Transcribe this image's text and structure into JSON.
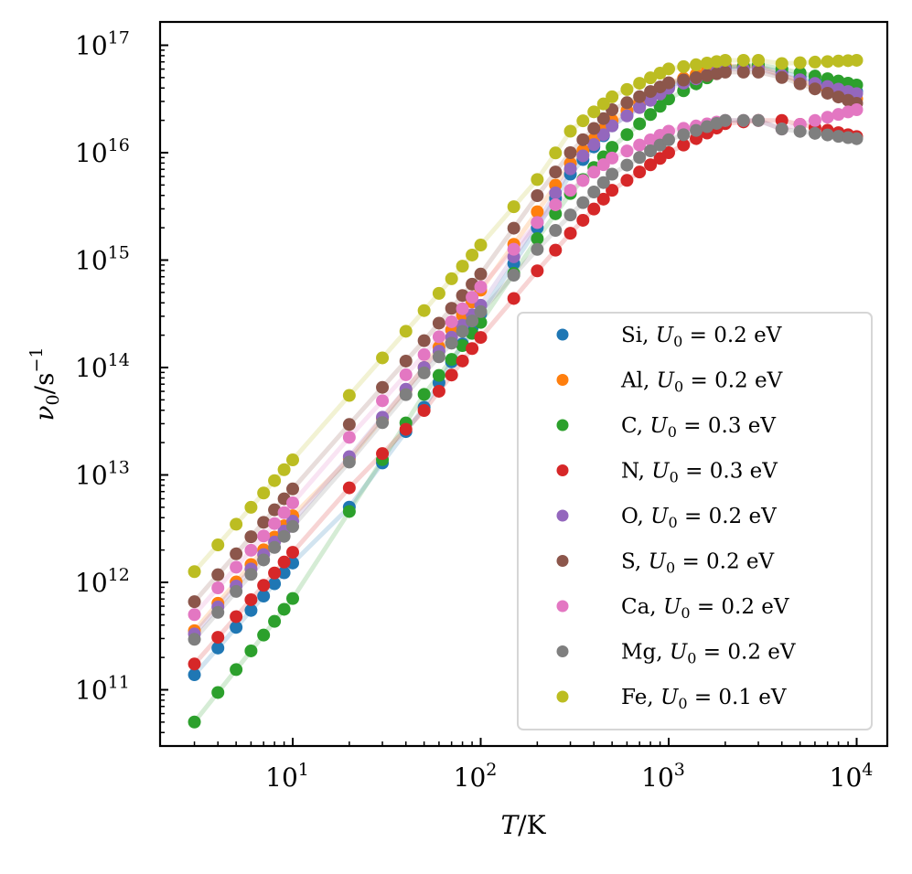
{
  "chart_data": {
    "type": "scatter",
    "title": "",
    "xlabel": "T/K",
    "ylabel": "ν0/s^-1",
    "xscale": "log",
    "yscale": "log",
    "xlim": [
      2.2,
      14500
    ],
    "ylim": [
      25000000000.0,
      1.6e+17
    ],
    "x_ticks": [
      {
        "value": 10,
        "base": "10",
        "exp": "1"
      },
      {
        "value": 100,
        "base": "10",
        "exp": "2"
      },
      {
        "value": 1000,
        "base": "10",
        "exp": "3"
      },
      {
        "value": 10000,
        "base": "10",
        "exp": "4"
      }
    ],
    "y_ticks": [
      {
        "value": 100000000000.0,
        "base": "10",
        "exp": "11"
      },
      {
        "value": 1000000000000.0,
        "base": "10",
        "exp": "12"
      },
      {
        "value": 10000000000000.0,
        "base": "10",
        "exp": "13"
      },
      {
        "value": 100000000000000.0,
        "base": "10",
        "exp": "14"
      },
      {
        "value": 1000000000000000.0,
        "base": "10",
        "exp": "15"
      },
      {
        "value": 1e+16,
        "base": "10",
        "exp": "16"
      },
      {
        "value": 1e+17,
        "base": "10",
        "exp": "17"
      }
    ],
    "legend_position": "lower-right",
    "x": [
      3,
      4,
      5,
      6,
      7,
      8,
      9,
      10,
      20,
      30,
      40,
      50,
      60,
      70,
      80,
      90,
      100,
      150,
      200,
      250,
      300,
      350,
      400,
      450,
      500,
      600,
      700,
      800,
      900,
      1000,
      1200,
      1400,
      1600,
      1800,
      2000,
      2500,
      3000,
      4000,
      5000,
      6000,
      7000,
      8000,
      9000,
      10000
    ],
    "series": [
      {
        "name": "Si",
        "label": "Si, U0 = 0.2 eV",
        "color": "#1f77b4",
        "log10_anchors": [
          [
            3,
            11.14
          ],
          [
            10,
            12.18
          ],
          [
            20,
            12.7
          ],
          [
            50,
            13.63
          ],
          [
            100,
            14.5
          ],
          [
            200,
            15.3
          ],
          [
            300,
            15.8
          ],
          [
            500,
            16.25
          ],
          [
            1000,
            16.62
          ],
          [
            2000,
            16.8
          ],
          [
            3000,
            16.8
          ],
          [
            4000,
            16.75
          ],
          [
            10000,
            16.57
          ]
        ]
      },
      {
        "name": "Al",
        "label": "Al, U0 = 0.2 eV",
        "color": "#ff7f0e",
        "log10_anchors": [
          [
            3,
            11.55
          ],
          [
            10,
            12.62
          ],
          [
            20,
            13.15
          ],
          [
            50,
            14.0
          ],
          [
            100,
            14.72
          ],
          [
            200,
            15.45
          ],
          [
            300,
            15.9
          ],
          [
            500,
            16.3
          ],
          [
            1000,
            16.65
          ],
          [
            2000,
            16.81
          ],
          [
            3000,
            16.8
          ],
          [
            4000,
            16.72
          ],
          [
            10000,
            16.5
          ]
        ]
      },
      {
        "name": "C",
        "label": "C, U0 = 0.3 eV",
        "color": "#2ca02c",
        "log10_anchors": [
          [
            3,
            10.7
          ],
          [
            10,
            11.85
          ],
          [
            20,
            12.66
          ],
          [
            50,
            13.75
          ],
          [
            100,
            14.42
          ],
          [
            200,
            15.2
          ],
          [
            300,
            15.62
          ],
          [
            500,
            16.05
          ],
          [
            1000,
            16.5
          ],
          [
            2000,
            16.79
          ],
          [
            3000,
            16.82
          ],
          [
            4000,
            16.78
          ],
          [
            10000,
            16.63
          ]
        ]
      },
      {
        "name": "N",
        "label": "N, U0 = 0.3 eV",
        "color": "#d62728",
        "log10_anchors": [
          [
            3,
            11.24
          ],
          [
            10,
            12.28
          ],
          [
            20,
            12.88
          ],
          [
            50,
            13.6
          ],
          [
            100,
            14.28
          ],
          [
            200,
            14.9
          ],
          [
            300,
            15.25
          ],
          [
            500,
            15.65
          ],
          [
            1000,
            16.0
          ],
          [
            2000,
            16.27
          ],
          [
            3000,
            16.3
          ],
          [
            4000,
            16.3
          ],
          [
            10000,
            16.15
          ]
        ]
      },
      {
        "name": "O",
        "label": "O, U0 = 0.2 eV",
        "color": "#9467bd",
        "log10_anchors": [
          [
            3,
            11.52
          ],
          [
            10,
            12.57
          ],
          [
            20,
            13.17
          ],
          [
            50,
            14.0
          ],
          [
            100,
            14.58
          ],
          [
            200,
            15.35
          ],
          [
            300,
            15.85
          ],
          [
            500,
            16.25
          ],
          [
            1000,
            16.6
          ],
          [
            2000,
            16.78
          ],
          [
            3000,
            16.78
          ],
          [
            4000,
            16.72
          ],
          [
            10000,
            16.55
          ]
        ]
      },
      {
        "name": "S",
        "label": "S, U0 = 0.2 eV",
        "color": "#8c564b",
        "log10_anchors": [
          [
            3,
            11.82
          ],
          [
            10,
            12.87
          ],
          [
            20,
            13.47
          ],
          [
            50,
            14.25
          ],
          [
            100,
            14.87
          ],
          [
            200,
            15.6
          ],
          [
            300,
            16.0
          ],
          [
            500,
            16.4
          ],
          [
            1000,
            16.65
          ],
          [
            2000,
            16.75
          ],
          [
            3000,
            16.75
          ],
          [
            4000,
            16.7
          ],
          [
            10000,
            16.46
          ]
        ]
      },
      {
        "name": "Ca",
        "label": "Ca, U0 = 0.2 eV",
        "color": "#e377c2",
        "log10_anchors": [
          [
            3,
            11.7
          ],
          [
            10,
            12.74
          ],
          [
            20,
            13.35
          ],
          [
            50,
            14.12
          ],
          [
            100,
            14.75
          ],
          [
            200,
            15.35
          ],
          [
            300,
            15.65
          ],
          [
            500,
            15.95
          ],
          [
            1000,
            16.2
          ],
          [
            2000,
            16.3
          ],
          [
            3000,
            16.3
          ],
          [
            4000,
            16.22
          ],
          [
            10000,
            16.4
          ]
        ]
      },
      {
        "name": "Mg",
        "label": "Mg, U0 = 0.2 eV",
        "color": "#7f7f7f",
        "log10_anchors": [
          [
            3,
            11.47
          ],
          [
            10,
            12.52
          ],
          [
            20,
            13.12
          ],
          [
            50,
            13.95
          ],
          [
            100,
            14.52
          ],
          [
            200,
            15.1
          ],
          [
            300,
            15.42
          ],
          [
            500,
            15.8
          ],
          [
            1000,
            16.12
          ],
          [
            2000,
            16.3
          ],
          [
            3000,
            16.3
          ],
          [
            4000,
            16.22
          ],
          [
            10000,
            16.13
          ]
        ]
      },
      {
        "name": "Fe",
        "label": "Fe, U0 = 0.1 eV",
        "color": "#bcbd22",
        "log10_anchors": [
          [
            3,
            12.1
          ],
          [
            10,
            13.14
          ],
          [
            20,
            13.74
          ],
          [
            50,
            14.53
          ],
          [
            100,
            15.14
          ],
          [
            200,
            15.75
          ],
          [
            300,
            16.2
          ],
          [
            500,
            16.52
          ],
          [
            1000,
            16.78
          ],
          [
            2000,
            16.86
          ],
          [
            3000,
            16.86
          ],
          [
            4000,
            16.83
          ],
          [
            10000,
            16.86
          ]
        ]
      }
    ]
  }
}
